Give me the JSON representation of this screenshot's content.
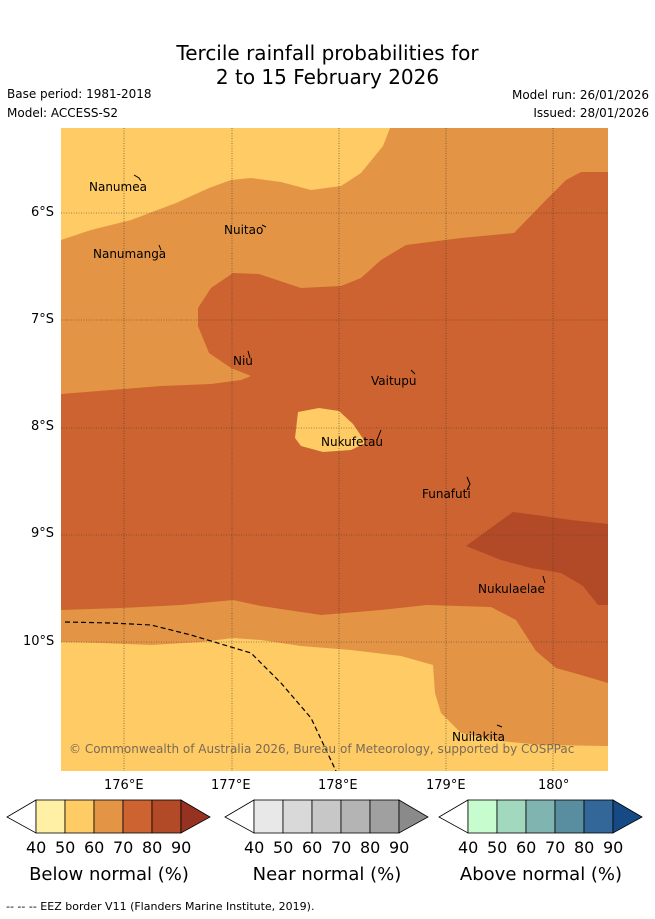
{
  "title": {
    "line1": "Tercile rainfall probabilities for",
    "line2": "2 to 15 February 2026"
  },
  "meta": {
    "base_period": "Base period: 1981-2018",
    "model": "Model: ACCESS-S2",
    "model_run": "Model run: 26/01/2026",
    "issued": "Issued: 28/01/2026"
  },
  "map": {
    "places": [
      "Nanumea",
      "Nuitao",
      "Nanumanga",
      "Niu",
      "Vaitupu",
      "Nukufetau",
      "Funafuti",
      "Nukulaelae",
      "Nuilakita"
    ],
    "lat_ticks": [
      "6°S",
      "7°S",
      "8°S",
      "9°S",
      "10°S"
    ],
    "lon_ticks": [
      "176°E",
      "177°E",
      "178°E",
      "179°E",
      "180°"
    ],
    "copyright": "© Commonwealth of Australia 2026, Bureau of Meteorology, supported by COSPPac",
    "colors": {
      "below_50": "#fecb65",
      "below_60": "#e39545",
      "below_70": "#cc6330",
      "below_80": "#b34a27"
    }
  },
  "legends": [
    {
      "title": "Below normal (%)",
      "ticks": [
        "40",
        "50",
        "60",
        "70",
        "80",
        "90"
      ],
      "colors": [
        "#ffffff",
        "#fff0a6",
        "#fecb65",
        "#e39545",
        "#cc6330",
        "#b34a27",
        "#963221"
      ]
    },
    {
      "title": "Near normal (%)",
      "ticks": [
        "40",
        "50",
        "60",
        "70",
        "80",
        "90"
      ],
      "colors": [
        "#ffffff",
        "#e8e8e8",
        "#d9d9d9",
        "#c7c7c7",
        "#b4b4b4",
        "#a0a0a0",
        "#8a8a8a"
      ]
    },
    {
      "title": "Above normal (%)",
      "ticks": [
        "40",
        "50",
        "60",
        "70",
        "80",
        "90"
      ],
      "colors": [
        "#ffffff",
        "#c6fcce",
        "#a2d8bd",
        "#80b4b0",
        "#588ea0",
        "#336699",
        "#164a84"
      ]
    }
  ],
  "footer": "--  --  -- EEZ border V11 (Flanders Marine Institute, 2019)."
}
